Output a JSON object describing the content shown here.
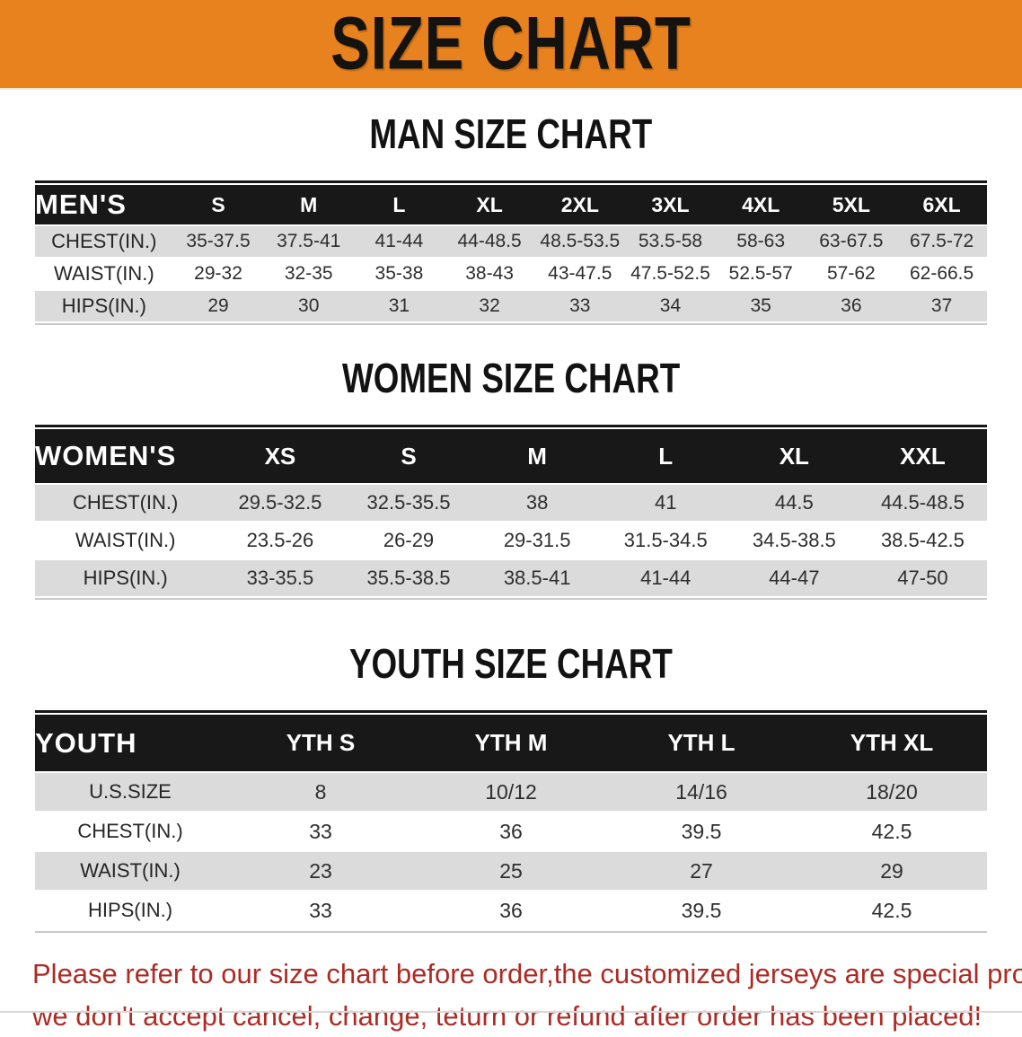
{
  "banner": {
    "title": "SIZE CHART"
  },
  "colors": {
    "banner_bg": "#E8821E",
    "table_header_bg": "#181818",
    "row_stripe_bg": "#DBDBDB",
    "disclaimer_text": "#AD2B24"
  },
  "sections": [
    {
      "id": "men",
      "heading": "MAN SIZE CHART",
      "table": {
        "label": "MEN'S",
        "columns": [
          "S",
          "M",
          "L",
          "XL",
          "2XL",
          "3XL",
          "4XL",
          "5XL",
          "6XL"
        ],
        "rows": [
          {
            "label": "CHEST(IN.)",
            "values": [
              "35-37.5",
              "37.5-41",
              "41-44",
              "44-48.5",
              "48.5-53.5",
              "53.5-58",
              "58-63",
              "63-67.5",
              "67.5-72"
            ]
          },
          {
            "label": "WAIST(IN.)",
            "values": [
              "29-32",
              "32-35",
              "35-38",
              "38-43",
              "43-47.5",
              "47.5-52.5",
              "52.5-57",
              "57-62",
              "62-66.5"
            ]
          },
          {
            "label": "HIPS(IN.)",
            "values": [
              "29",
              "30",
              "31",
              "32",
              "33",
              "34",
              "35",
              "36",
              "37"
            ]
          }
        ]
      }
    },
    {
      "id": "women",
      "heading": "WOMEN SIZE CHART",
      "table": {
        "label": "WOMEN'S",
        "columns": [
          "XS",
          "S",
          "M",
          "L",
          "XL",
          "XXL"
        ],
        "rows": [
          {
            "label": "CHEST(IN.)",
            "values": [
              "29.5-32.5",
              "32.5-35.5",
              "38",
              "41",
              "44.5",
              "44.5-48.5"
            ]
          },
          {
            "label": "WAIST(IN.)",
            "values": [
              "23.5-26",
              "26-29",
              "29-31.5",
              "31.5-34.5",
              "34.5-38.5",
              "38.5-42.5"
            ]
          },
          {
            "label": "HIPS(IN.)",
            "values": [
              "33-35.5",
              "35.5-38.5",
              "38.5-41",
              "41-44",
              "44-47",
              "47-50"
            ]
          }
        ]
      }
    },
    {
      "id": "youth",
      "heading": "YOUTH SIZE CHART",
      "table": {
        "label": "YOUTH",
        "columns": [
          "YTH S",
          "YTH M",
          "YTH L",
          "YTH XL"
        ],
        "rows": [
          {
            "label": "U.S.SIZE",
            "values": [
              "8",
              "10/12",
              "14/16",
              "18/20"
            ]
          },
          {
            "label": "CHEST(IN.)",
            "values": [
              "33",
              "36",
              "39.5",
              "42.5"
            ]
          },
          {
            "label": "WAIST(IN.)",
            "values": [
              "23",
              "25",
              "27",
              "29"
            ]
          },
          {
            "label": "HIPS(IN.)",
            "values": [
              "33",
              "36",
              "39.5",
              "42.5"
            ]
          }
        ]
      }
    }
  ],
  "disclaimer": {
    "line1": "Please refer to our size chart before order,the customized jerseys are special products,",
    "line2": "we don't accept cancel, change, teturn or refund after order has been placed!"
  }
}
